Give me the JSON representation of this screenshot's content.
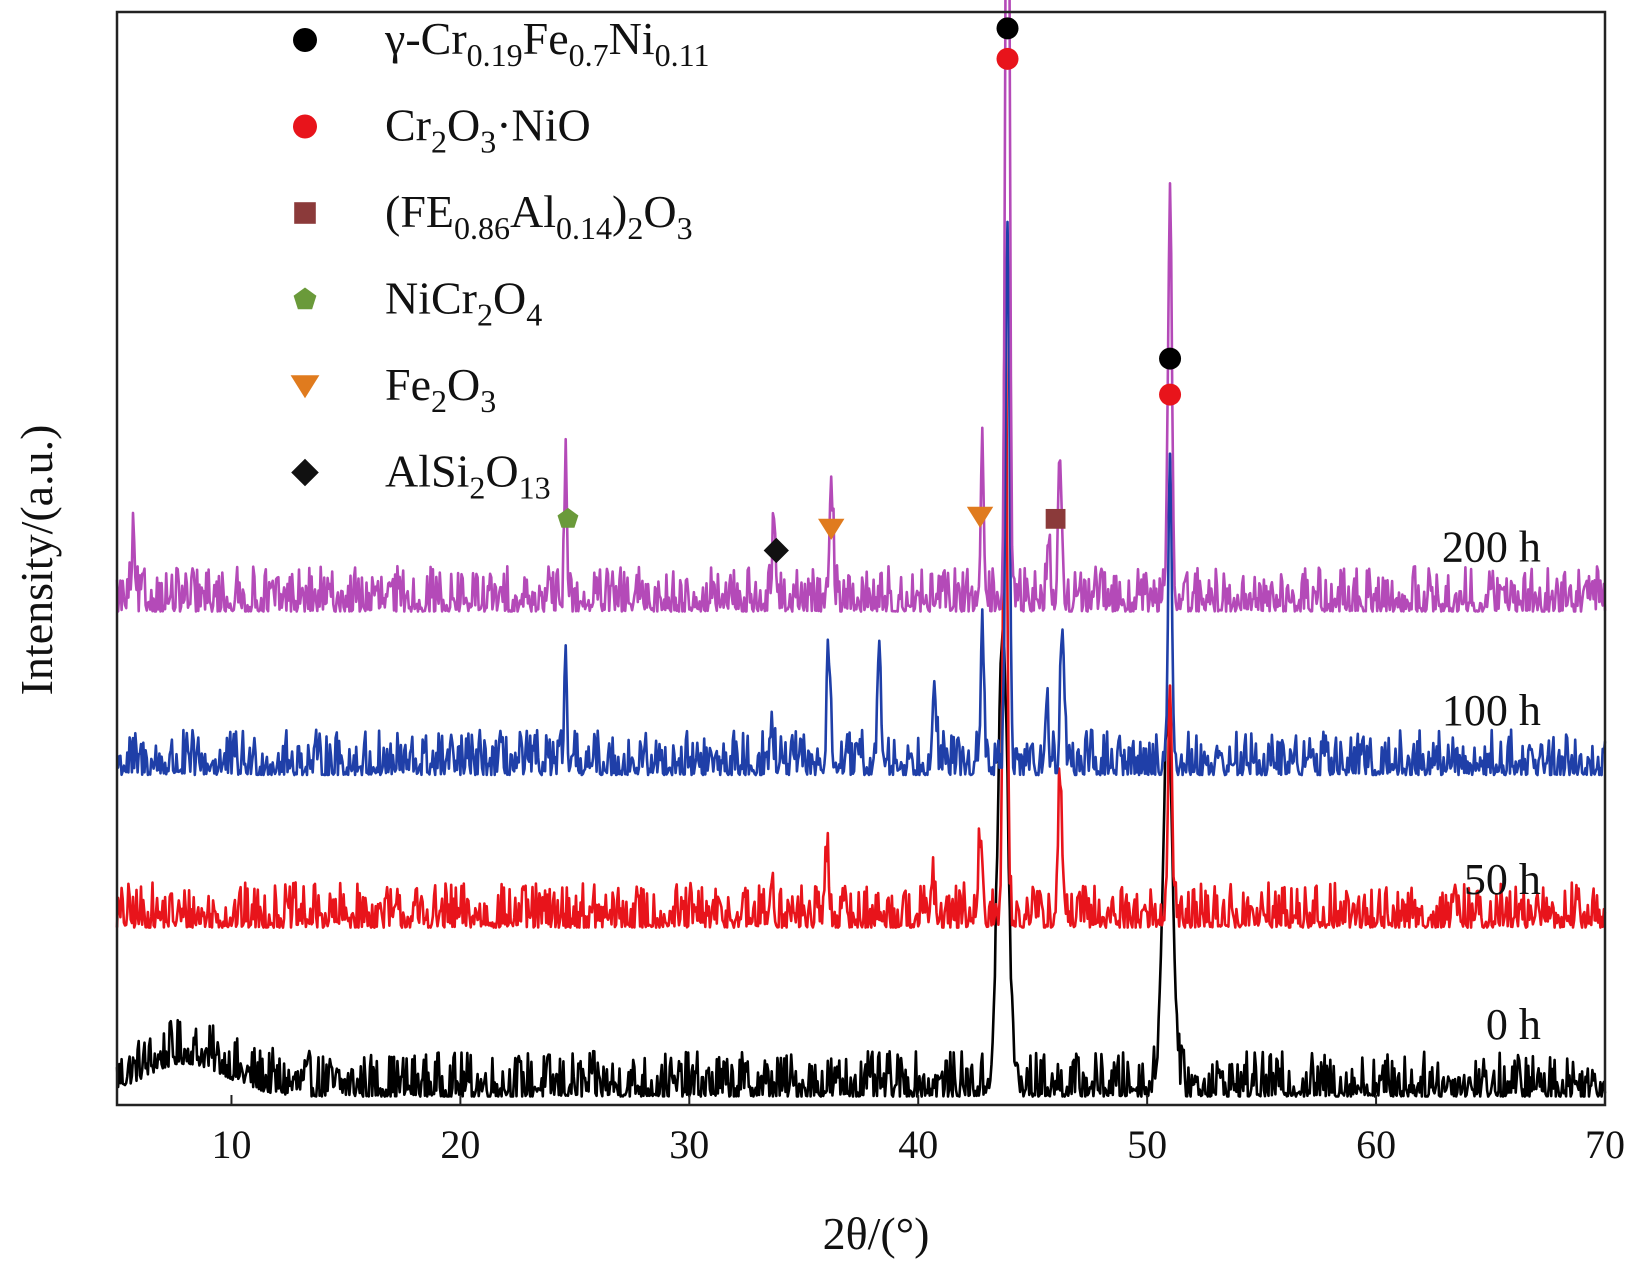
{
  "chart_data": {
    "type": "line",
    "xlabel": "2θ/(°)",
    "ylabel": "Intensity/(a.u.)",
    "xlim": [
      5,
      70
    ],
    "xticks": [
      10,
      20,
      30,
      40,
      50,
      60,
      70
    ],
    "ylim": [
      0,
      100
    ],
    "grid": false,
    "legend_position": "top-left",
    "legend": [
      {
        "id": "gamma",
        "label": "γ-Cr0.19Fe0.7Ni0.11",
        "marker": "circle",
        "color": "#000000",
        "parts": [
          [
            "γ-Cr",
            ""
          ],
          [
            "0.19",
            "sub"
          ],
          [
            "Fe",
            ""
          ],
          [
            "0.7",
            "sub"
          ],
          [
            "Ni",
            ""
          ],
          [
            "0.11",
            "sub"
          ]
        ]
      },
      {
        "id": "cr2o3nio",
        "label": "Cr2O3·NiO",
        "marker": "circle",
        "color": "#e8141b",
        "parts": [
          [
            "Cr",
            ""
          ],
          [
            "2",
            "sub"
          ],
          [
            "O",
            ""
          ],
          [
            "3",
            "sub"
          ],
          [
            "·NiO",
            ""
          ]
        ]
      },
      {
        "id": "feal",
        "label": "(FE0.86Al0.14)2O3",
        "marker": "square",
        "color": "#8b3a3a",
        "parts": [
          [
            "(FE",
            ""
          ],
          [
            "0.86",
            "sub"
          ],
          [
            "Al",
            ""
          ],
          [
            "0.14",
            "sub"
          ],
          [
            ")",
            ""
          ],
          [
            "2",
            "sub"
          ],
          [
            "O",
            ""
          ],
          [
            "3",
            "sub"
          ]
        ]
      },
      {
        "id": "nicr2o4",
        "label": "NiCr2O4",
        "marker": "pentagon",
        "color": "#6a9a3a",
        "parts": [
          [
            "NiCr",
            ""
          ],
          [
            "2",
            "sub"
          ],
          [
            "O",
            ""
          ],
          [
            "4",
            "sub"
          ]
        ]
      },
      {
        "id": "fe2o3",
        "label": "Fe2O3",
        "marker": "triangle-down",
        "color": "#e07b1e",
        "parts": [
          [
            "Fe",
            ""
          ],
          [
            "2",
            "sub"
          ],
          [
            "O",
            ""
          ],
          [
            "3",
            "sub"
          ]
        ]
      },
      {
        "id": "alsi2o13",
        "label": "AlSi2O13",
        "marker": "diamond",
        "color": "#111111",
        "parts": [
          [
            "AlSi",
            ""
          ],
          [
            "2",
            "sub"
          ],
          [
            "O",
            ""
          ],
          [
            "13",
            "sub"
          ]
        ]
      }
    ],
    "series": [
      {
        "name": "0 h",
        "color": "#000000",
        "baseline": 0.5,
        "noise": 1.6,
        "peaks": [
          [
            43.7,
            42,
            0.3
          ],
          [
            50.9,
            34,
            0.3
          ],
          [
            8,
            3,
            2.5
          ]
        ]
      },
      {
        "name": "50 h",
        "color": "#e8141b",
        "baseline": 16,
        "noise": 1.6,
        "peaks": [
          [
            43.8,
            60,
            0.12
          ],
          [
            51.0,
            22,
            0.12
          ],
          [
            46.2,
            13,
            0.12
          ],
          [
            42.7,
            7,
            0.1
          ],
          [
            36.0,
            6,
            0.12
          ],
          [
            33.6,
            4,
            0.1
          ],
          [
            40.6,
            4,
            0.1
          ]
        ]
      },
      {
        "name": "100 h",
        "color": "#1f3fa8",
        "baseline": 30,
        "noise": 1.6,
        "peaks": [
          [
            43.9,
            50,
            0.12
          ],
          [
            51.0,
            26,
            0.12
          ],
          [
            46.3,
            13,
            0.12
          ],
          [
            42.8,
            12,
            0.1
          ],
          [
            45.6,
            6,
            0.1
          ],
          [
            36.1,
            10,
            0.12
          ],
          [
            38.3,
            9,
            0.12
          ],
          [
            40.7,
            8,
            0.12
          ],
          [
            24.6,
            9,
            0.08
          ],
          [
            33.6,
            4,
            0.1
          ]
        ]
      },
      {
        "name": "200 h",
        "color": "#b44ab8",
        "baseline": 45,
        "noise": 1.6,
        "peaks": [
          [
            43.9,
            96,
            0.12
          ],
          [
            51.0,
            38,
            0.12
          ],
          [
            24.6,
            14,
            0.08
          ],
          [
            33.7,
            6,
            0.12
          ],
          [
            36.2,
            11,
            0.12
          ],
          [
            42.8,
            14,
            0.1
          ],
          [
            45.7,
            6,
            0.1
          ],
          [
            46.2,
            12,
            0.12
          ],
          [
            5.7,
            5,
            0.1
          ]
        ]
      }
    ],
    "annotations": [
      {
        "marker": "circle",
        "color": "#000000",
        "x": 43.9,
        "y": 98.5
      },
      {
        "marker": "circle",
        "color": "#e8141b",
        "x": 43.9,
        "y": 95.7
      },
      {
        "marker": "circle",
        "color": "#000000",
        "x": 51.0,
        "y": 68.2
      },
      {
        "marker": "circle",
        "color": "#e8141b",
        "x": 51.0,
        "y": 64.9
      },
      {
        "marker": "pentagon",
        "color": "#6a9a3a",
        "x": 24.7,
        "y": 53.5
      },
      {
        "marker": "diamond",
        "color": "#111111",
        "x": 33.8,
        "y": 50.6
      },
      {
        "marker": "triangle-down",
        "color": "#e07b1e",
        "x": 36.2,
        "y": 52.6
      },
      {
        "marker": "triangle-down",
        "color": "#e07b1e",
        "x": 42.7,
        "y": 53.7
      },
      {
        "marker": "square",
        "color": "#8b3a3a",
        "x": 46.0,
        "y": 53.5
      }
    ],
    "series_labels": [
      {
        "text": "200 h",
        "x": 67.2,
        "y": 49.6
      },
      {
        "text": "100 h",
        "x": 67.2,
        "y": 34.6
      },
      {
        "text": "50 h",
        "x": 67.2,
        "y": 19.1
      },
      {
        "text": "0 h",
        "x": 67.2,
        "y": 5.8
      }
    ]
  }
}
